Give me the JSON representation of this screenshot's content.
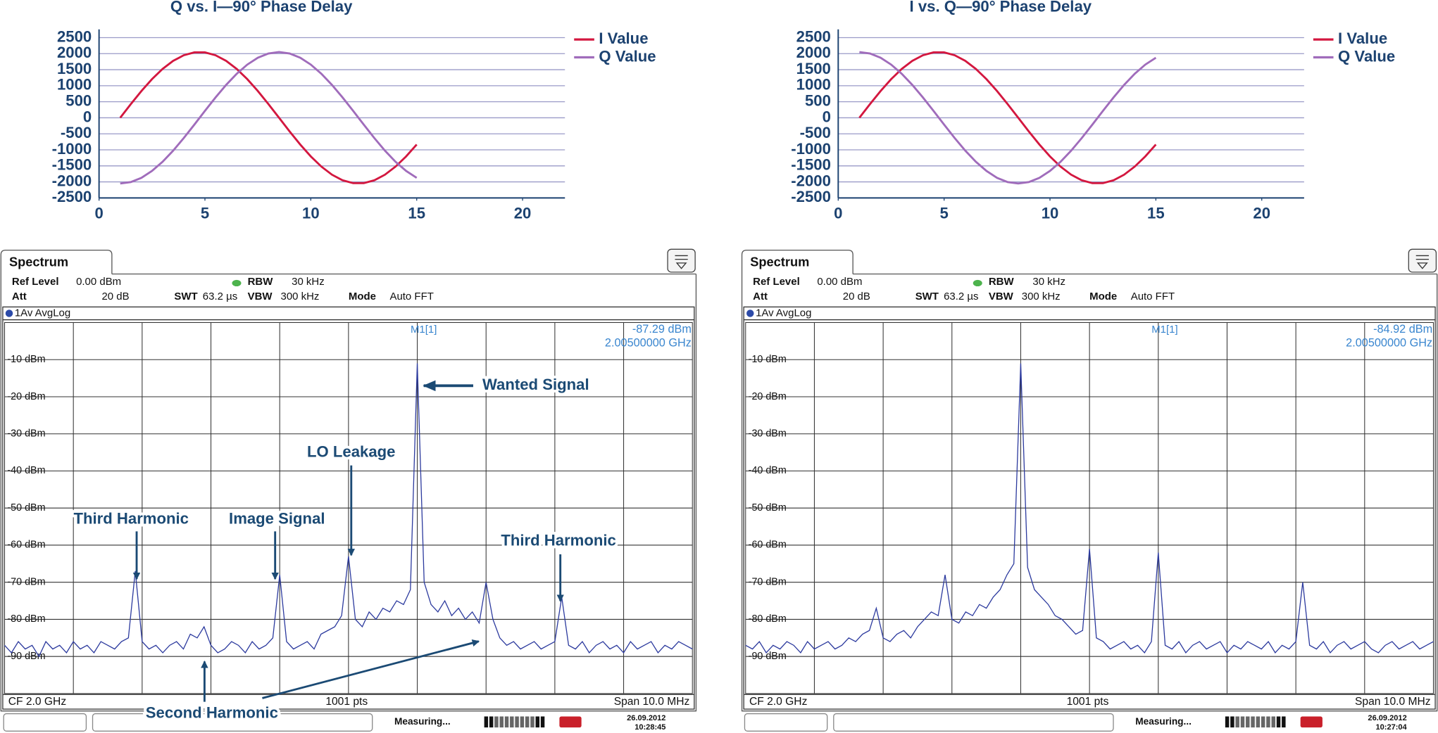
{
  "chart_data": [
    {
      "type": "line",
      "title": "Q vs. I—90° Phase Delay",
      "x": [
        1,
        1.5,
        2,
        2.5,
        3,
        3.5,
        4,
        4.5,
        5,
        5.5,
        6,
        6.5,
        7,
        7.5,
        8,
        8.5,
        9,
        9.5,
        10,
        10.5,
        11,
        11.5,
        12,
        12.5,
        13,
        13.5,
        14,
        14.5,
        15
      ],
      "series": [
        {
          "name": "I Value",
          "color": "#d3173f",
          "values": [
            0,
            426,
            834,
            1205,
            1523,
            1775,
            1950,
            2039,
            2039,
            1950,
            1775,
            1523,
            1205,
            834,
            426,
            0,
            -426,
            -834,
            -1205,
            -1523,
            -1775,
            -1950,
            -2039,
            -2039,
            -1950,
            -1775,
            -1523,
            -1205,
            -834
          ]
        },
        {
          "name": "Q Value",
          "color": "#a06cbb",
          "values": [
            -2050,
            -2005,
            -1873,
            -1658,
            -1372,
            -1025,
            -633,
            -214,
            214,
            633,
            1025,
            1372,
            1658,
            1873,
            2005,
            2050,
            2005,
            1873,
            1658,
            1372,
            1025,
            633,
            214,
            -214,
            -633,
            -1025,
            -1372,
            -1658,
            -1873
          ]
        }
      ],
      "xlim": [
        0,
        22
      ],
      "xticks": [
        0,
        5,
        10,
        15,
        20
      ],
      "ylim": [
        -2500,
        2500
      ],
      "yticks": [
        -2500,
        -2000,
        -1500,
        -1000,
        -500,
        0,
        500,
        1000,
        1500,
        2000,
        2500
      ],
      "grid": true,
      "legend": "right"
    },
    {
      "type": "line",
      "title": "I vs. Q—90° Phase Delay",
      "x": [
        1,
        1.5,
        2,
        2.5,
        3,
        3.5,
        4,
        4.5,
        5,
        5.5,
        6,
        6.5,
        7,
        7.5,
        8,
        8.5,
        9,
        9.5,
        10,
        10.5,
        11,
        11.5,
        12,
        12.5,
        13,
        13.5,
        14,
        14.5,
        15
      ],
      "series": [
        {
          "name": "I Value",
          "color": "#d3173f",
          "values": [
            0,
            426,
            834,
            1205,
            1523,
            1775,
            1950,
            2039,
            2039,
            1950,
            1775,
            1523,
            1205,
            834,
            426,
            0,
            -426,
            -834,
            -1205,
            -1523,
            -1775,
            -1950,
            -2039,
            -2039,
            -1950,
            -1775,
            -1523,
            -1205,
            -834
          ]
        },
        {
          "name": "Q Value",
          "color": "#a06cbb",
          "values": [
            2050,
            2005,
            1873,
            1658,
            1372,
            1025,
            633,
            214,
            -214,
            -633,
            -1025,
            -1372,
            -1658,
            -1873,
            -2005,
            -2050,
            -2005,
            -1873,
            -1658,
            -1372,
            -1025,
            -633,
            -214,
            214,
            633,
            1025,
            1372,
            1658,
            1873
          ]
        }
      ],
      "xlim": [
        0,
        22
      ],
      "xticks": [
        0,
        5,
        10,
        15,
        20
      ],
      "ylim": [
        -2500,
        2500
      ],
      "yticks": [
        -2500,
        -2000,
        -1500,
        -1000,
        -500,
        0,
        500,
        1000,
        1500,
        2000,
        2500
      ],
      "grid": true,
      "legend": "right"
    },
    {
      "type": "spectrum",
      "tab": "Spectrum",
      "info": [
        {
          "label": "Ref Level",
          "value": "0.00 dBm"
        },
        {
          "label": "Att",
          "value": "20 dB"
        },
        {
          "label": "SWT",
          "value": "63.2 µs"
        },
        {
          "label": "RBW",
          "value": "30 kHz"
        },
        {
          "label": "VBW",
          "value": "300 kHz"
        },
        {
          "label": "Mode",
          "value": "Auto FFT"
        }
      ],
      "series": [
        {
          "name": "1Av AvgLog",
          "color": "#2c3a9e",
          "values": [
            -87,
            -89,
            -86,
            -88,
            -87,
            -90,
            -86,
            -88,
            -87,
            -89,
            -86,
            -88,
            -87,
            -89,
            -86,
            -87,
            -88,
            -86,
            -85,
            -67,
            -86,
            -88,
            -87,
            -89,
            -87,
            -86,
            -88,
            -84,
            -85,
            -82,
            -87,
            -89,
            -88,
            -86,
            -87,
            -89,
            -86,
            -88,
            -87,
            -85,
            -68,
            -86,
            -88,
            -87,
            -86,
            -88,
            -84,
            -83,
            -82,
            -79,
            -63,
            -80,
            -82,
            -78,
            -80,
            -77,
            -78,
            -75,
            -76,
            -72,
            -11,
            -70,
            -76,
            -78,
            -75,
            -79,
            -77,
            -80,
            -78,
            -81,
            -70,
            -80,
            -85,
            -87,
            -86,
            -88,
            -87,
            -86,
            -88,
            -87,
            -86,
            -74,
            -87,
            -88,
            -86,
            -89,
            -87,
            -86,
            -88,
            -87,
            -89,
            -86,
            -88,
            -87,
            -86,
            -89,
            -87,
            -88,
            -86,
            -87,
            -88
          ]
        }
      ],
      "ylim": [
        -100,
        0
      ],
      "yticks": [
        {
          "value": -10,
          "label": "-10 dBm"
        },
        {
          "value": -20,
          "label": "-20 dBm"
        },
        {
          "value": -30,
          "label": "-30 dBm"
        },
        {
          "value": -40,
          "label": "-40 dBm"
        },
        {
          "value": -50,
          "label": "-50 dBm"
        },
        {
          "value": -60,
          "label": "-60 dBm"
        },
        {
          "value": -70,
          "label": "-70 dBm"
        },
        {
          "value": -80,
          "label": "-80 dBm"
        },
        {
          "value": -90,
          "label": "-90 dBm"
        }
      ],
      "grid": true,
      "marker": {
        "label": "M1[1]",
        "level": "-87.29 dBm",
        "frequency": "2.00500000 GHz"
      },
      "footer": [
        "CF 2.0 GHz",
        "1001 pts",
        "Span 10.0 MHz"
      ],
      "status": [
        "Measuring...",
        "26.09.2012",
        "10:28:45"
      ],
      "annotations": [
        "Third Harmonic",
        "Image Signal",
        "LO Leakage",
        "Wanted Signal",
        "Third Harmonic",
        "Second Harmonic"
      ]
    },
    {
      "type": "spectrum",
      "tab": "Spectrum",
      "info": [
        {
          "label": "Ref Level",
          "value": "0.00 dBm"
        },
        {
          "label": "Att",
          "value": "20 dB"
        },
        {
          "label": "SWT",
          "value": "63.2 µs"
        },
        {
          "label": "RBW",
          "value": "30 kHz"
        },
        {
          "label": "VBW",
          "value": "300 kHz"
        },
        {
          "label": "Mode",
          "value": "Auto FFT"
        }
      ],
      "series": [
        {
          "name": "1Av AvgLog",
          "color": "#2c3a9e",
          "values": [
            -87,
            -88,
            -86,
            -89,
            -87,
            -88,
            -86,
            -87,
            -89,
            -86,
            -88,
            -87,
            -86,
            -88,
            -87,
            -85,
            -86,
            -84,
            -83,
            -77,
            -85,
            -86,
            -84,
            -83,
            -85,
            -82,
            -80,
            -78,
            -79,
            -68,
            -80,
            -81,
            -78,
            -79,
            -76,
            -77,
            -74,
            -72,
            -68,
            -65,
            -11,
            -66,
            -72,
            -74,
            -76,
            -79,
            -80,
            -82,
            -84,
            -83,
            -61,
            -85,
            -86,
            -88,
            -87,
            -86,
            -88,
            -87,
            -89,
            -86,
            -62,
            -87,
            -88,
            -86,
            -89,
            -87,
            -86,
            -88,
            -87,
            -86,
            -89,
            -87,
            -88,
            -86,
            -87,
            -88,
            -86,
            -89,
            -87,
            -88,
            -86,
            -70,
            -87,
            -88,
            -86,
            -89,
            -87,
            -86,
            -88,
            -87,
            -86,
            -88,
            -89,
            -87,
            -86,
            -88,
            -87,
            -86,
            -88,
            -87,
            -86
          ]
        }
      ],
      "ylim": [
        -100,
        0
      ],
      "yticks": [
        {
          "value": -10,
          "label": "-10 dBm"
        },
        {
          "value": -20,
          "label": "-20 dBm"
        },
        {
          "value": -30,
          "label": "-30 dBm"
        },
        {
          "value": -40,
          "label": "-40 dBm"
        },
        {
          "value": -50,
          "label": "-50 dBm"
        },
        {
          "value": -60,
          "label": "-60 dBm"
        },
        {
          "value": -70,
          "label": "-70 dBm"
        },
        {
          "value": -80,
          "label": "-80 dBm"
        },
        {
          "value": -90,
          "label": "-90 dBm"
        }
      ],
      "grid": true,
      "marker": {
        "label": "M1[1]",
        "level": "-84.92 dBm",
        "frequency": "2.00500000 GHz"
      },
      "footer": [
        "CF 2.0 GHz",
        "1001 pts",
        "Span 10.0 MHz"
      ],
      "status": [
        "Measuring...",
        "26.09.2012",
        "10:27:04"
      ]
    }
  ]
}
